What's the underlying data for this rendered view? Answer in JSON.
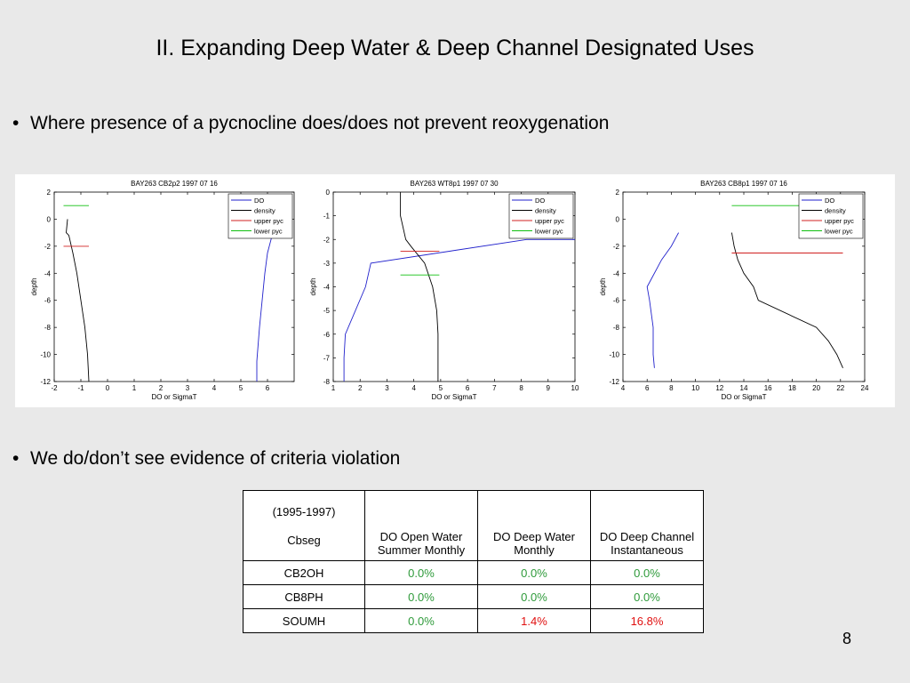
{
  "slide": {
    "title": "II.  Expanding Deep Water & Deep Channel Designated Uses",
    "bullet1": "Where presence of a pycnocline does/does not prevent reoxygenation",
    "bullet2": "We do/don’t see evidence of criteria violation",
    "page_number": "8",
    "bullet_char": "•"
  },
  "colors": {
    "DO": "#2222cc",
    "density": "#000000",
    "upper_pyc": "#d02020",
    "lower_pyc": "#10c010",
    "green_text": "#2e9a3a",
    "red_text": "#e01010"
  },
  "chart_data": [
    {
      "type": "line",
      "title": "BAY263 CB2p2        1997 07 16",
      "xlabel": "DO or SigmaT",
      "ylabel": "depth",
      "xlim": [
        -2,
        7
      ],
      "ylim": [
        -12,
        2
      ],
      "xticks": [
        -2,
        -1,
        0,
        1,
        2,
        3,
        4,
        5,
        6
      ],
      "yticks": [
        2,
        0,
        -2,
        -4,
        -6,
        -8,
        -10,
        -12
      ],
      "legend": [
        "DO",
        "density",
        "upper pyc",
        "lower pyc"
      ],
      "legend_position": "top-right",
      "series": [
        {
          "name": "DO",
          "x": [
            5.6,
            5.6,
            5.7,
            5.8,
            5.9,
            6.0,
            6.2,
            6.4
          ],
          "y": [
            -12,
            -10.5,
            -8,
            -6,
            -4,
            -2.5,
            -1,
            0
          ]
        },
        {
          "name": "density",
          "x": [
            -0.7,
            -0.75,
            -0.85,
            -1.0,
            -1.15,
            -1.3,
            -1.45,
            -1.55,
            -1.5
          ],
          "y": [
            -12,
            -10,
            -8,
            -6,
            -4,
            -2.5,
            -1.2,
            -1,
            0
          ]
        },
        {
          "name": "upper pyc",
          "x": [
            -1.65,
            -0.7
          ],
          "y": [
            -2,
            -2
          ]
        },
        {
          "name": "lower pyc",
          "x": [
            -1.65,
            -0.7
          ],
          "y": [
            1,
            1
          ]
        }
      ]
    },
    {
      "type": "line",
      "title": "BAY263 WT8p1        1997 07 30",
      "xlabel": "DO or SigmaT",
      "ylabel": "depth",
      "xlim": [
        1,
        10
      ],
      "ylim": [
        -8,
        0
      ],
      "xticks": [
        1,
        2,
        3,
        4,
        5,
        6,
        7,
        8,
        9,
        10
      ],
      "yticks": [
        0,
        -1,
        -2,
        -3,
        -4,
        -5,
        -6,
        -7,
        -8
      ],
      "legend": [
        "DO",
        "density",
        "upper pyc",
        "lower pyc"
      ],
      "legend_position": "top-right",
      "series": [
        {
          "name": "DO",
          "x": [
            1.4,
            1.4,
            1.45,
            2.2,
            2.4,
            8.2,
            10
          ],
          "y": [
            -8,
            -7,
            -6,
            -4,
            -3,
            -2,
            -2
          ]
        },
        {
          "name": "density",
          "x": [
            4.9,
            4.9,
            4.85,
            4.7,
            4.4,
            3.9,
            3.7,
            3.5,
            3.5
          ],
          "y": [
            -8,
            -6,
            -5,
            -4,
            -3,
            -2.3,
            -2,
            -1,
            0
          ]
        },
        {
          "name": "upper pyc",
          "x": [
            3.5,
            4.95
          ],
          "y": [
            -2.5,
            -2.5
          ]
        },
        {
          "name": "lower pyc",
          "x": [
            3.5,
            4.95
          ],
          "y": [
            -3.5,
            -3.5
          ]
        }
      ]
    },
    {
      "type": "line",
      "title": "BAY263 CB8p1        1997 07 16",
      "xlabel": "DO or SigmaT",
      "ylabel": "depth",
      "xlim": [
        4,
        24
      ],
      "ylim": [
        -12,
        2
      ],
      "xticks": [
        4,
        6,
        8,
        10,
        12,
        14,
        16,
        18,
        20,
        22,
        24
      ],
      "yticks": [
        2,
        0,
        -2,
        -4,
        -6,
        -8,
        -10,
        -12
      ],
      "legend": [
        "DO",
        "density",
        "upper pyc",
        "lower pyc"
      ],
      "legend_position": "top-right",
      "series": [
        {
          "name": "DO",
          "x": [
            6.6,
            6.5,
            6.5,
            6.2,
            6.0,
            6.3,
            7.2,
            8.0,
            8.6
          ],
          "y": [
            -11,
            -10,
            -8,
            -6,
            -5,
            -4.5,
            -3,
            -2,
            -1
          ]
        },
        {
          "name": "density",
          "x": [
            22.2,
            21.7,
            21.0,
            20.0,
            15.2,
            14.8,
            14.0,
            13.5,
            13.2,
            13.0
          ],
          "y": [
            -11,
            -10,
            -9,
            -8,
            -6,
            -5,
            -4,
            -3,
            -2,
            -1
          ]
        },
        {
          "name": "upper pyc",
          "x": [
            13.0,
            22.2
          ],
          "y": [
            -2.5,
            -2.5
          ]
        },
        {
          "name": "lower pyc",
          "x": [
            13.0,
            22.2
          ],
          "y": [
            1,
            1
          ]
        }
      ]
    }
  ],
  "table": {
    "header": {
      "c0_top": "(1995-1997)",
      "c0_bottom": "Cbseg",
      "c1": "DO Open Water Summer Monthly",
      "c2": "DO Deep Water Monthly",
      "c3": "DO Deep Channel Instantaneous"
    },
    "rows": [
      {
        "seg": "CB2OH",
        "open": "0.0%",
        "deep": "0.0%",
        "channel": "0.0%",
        "open_status": "ok",
        "deep_status": "ok",
        "channel_status": "ok"
      },
      {
        "seg": "CB8PH",
        "open": "0.0%",
        "deep": "0.0%",
        "channel": "0.0%",
        "open_status": "ok",
        "deep_status": "ok",
        "channel_status": "ok"
      },
      {
        "seg": "SOUMH",
        "open": "0.0%",
        "deep": "1.4%",
        "channel": "16.8%",
        "open_status": "ok",
        "deep_status": "violation",
        "channel_status": "violation"
      }
    ]
  }
}
